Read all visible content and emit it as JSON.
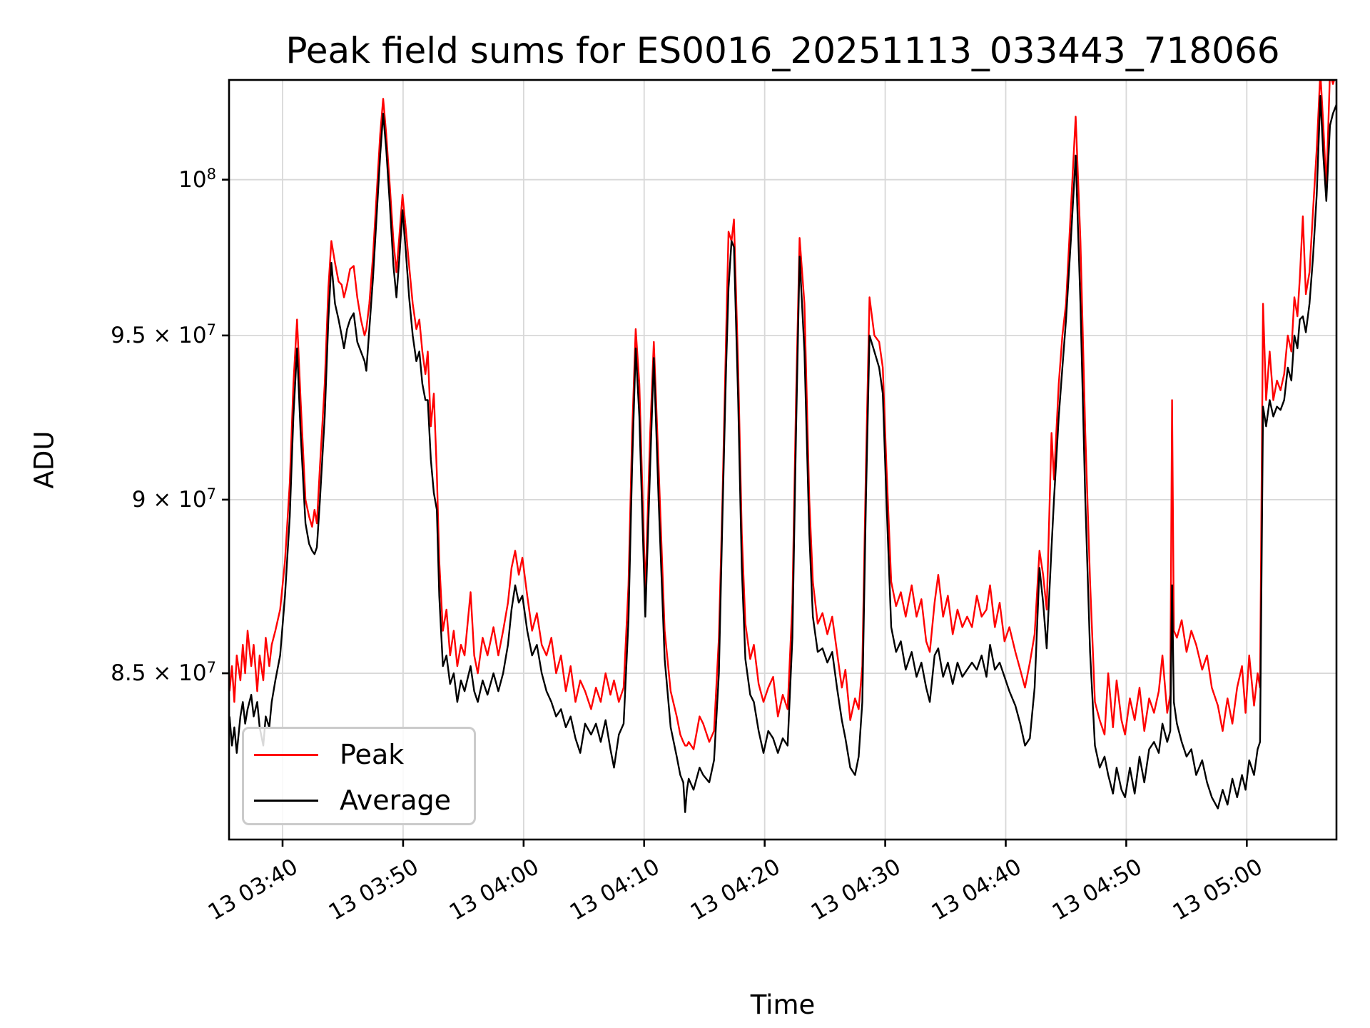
{
  "figure": {
    "title": "Peak field sums for ES0016_20251113_033443_718066"
  },
  "axes": {
    "xlabel": "Time",
    "ylabel": "ADU"
  },
  "legend": {
    "entries": [
      {
        "label": "Peak",
        "color": "#ff0000"
      },
      {
        "label": "Average",
        "color": "#000000"
      }
    ]
  },
  "chart_data": {
    "type": "line",
    "title": "Peak field sums for ES0016_20251113_033443_718066",
    "xlabel": "Time",
    "ylabel": "ADU",
    "yscale": "log",
    "grid": true,
    "legend_position": "lower left",
    "colors": {
      "peak": "#ff0000",
      "average": "#000000",
      "grid": "#d8d8d8",
      "spine": "#000000"
    },
    "x_unit": "minutes after 03:00 on day 13 (Nov 13)",
    "y_unit_multiplier": 10000000,
    "xlim_minutes": [
      35.56,
      127.44
    ],
    "ylim": [
      80470000,
      103340000
    ],
    "x_ticks": [
      {
        "t": 40,
        "label": "13 03:40"
      },
      {
        "t": 50,
        "label": "13 03:50"
      },
      {
        "t": 60,
        "label": "13 04:00"
      },
      {
        "t": 70,
        "label": "13 04:10"
      },
      {
        "t": 80,
        "label": "13 04:20"
      },
      {
        "t": 90,
        "label": "13 04:30"
      },
      {
        "t": 100,
        "label": "13 04:40"
      },
      {
        "t": 110,
        "label": "13 04:50"
      },
      {
        "t": 120,
        "label": "13 05:00"
      }
    ],
    "y_ticks": [
      {
        "v": 10.0,
        "base": "10",
        "exp": "8",
        "label": "10^8"
      },
      {
        "v": 9.5,
        "base": "9.5 × 10",
        "exp": "7",
        "label": "9.5 × 10^7"
      },
      {
        "v": 9.0,
        "base": "9 × 10",
        "exp": "7",
        "label": "9 × 10^7"
      },
      {
        "v": 8.5,
        "base": "8.5 × 10",
        "exp": "7",
        "label": "8.5 × 10^7"
      }
    ],
    "x": [
      35.6,
      35.8,
      36.0,
      36.2,
      36.5,
      36.7,
      36.9,
      37.1,
      37.4,
      37.6,
      37.9,
      38.1,
      38.4,
      38.6,
      38.9,
      39.1,
      39.4,
      39.8,
      40.2,
      40.6,
      40.9,
      41.2,
      41.5,
      41.9,
      42.2,
      42.45,
      42.65,
      42.85,
      43.1,
      43.5,
      43.8,
      44.05,
      44.35,
      44.65,
      44.9,
      45.1,
      45.35,
      45.6,
      45.9,
      46.2,
      46.5,
      46.8,
      46.95,
      47.2,
      47.5,
      47.8,
      48.1,
      48.35,
      48.6,
      48.9,
      49.2,
      49.45,
      49.7,
      49.95,
      50.2,
      50.5,
      50.8,
      51.1,
      51.35,
      51.6,
      51.85,
      52.05,
      52.3,
      52.55,
      52.8,
      53.0,
      53.3,
      53.6,
      53.9,
      54.2,
      54.5,
      54.8,
      55.1,
      55.6,
      55.9,
      56.2,
      56.6,
      57.0,
      57.5,
      57.9,
      58.3,
      58.7,
      59.0,
      59.3,
      59.6,
      59.9,
      60.3,
      60.7,
      61.1,
      61.5,
      61.9,
      62.3,
      62.7,
      63.1,
      63.5,
      63.9,
      64.3,
      64.7,
      65.1,
      65.6,
      66.0,
      66.4,
      66.8,
      67.2,
      67.5,
      67.9,
      68.3,
      68.7,
      69.0,
      69.3,
      69.6,
      70.1,
      70.5,
      70.8,
      71.2,
      71.7,
      72.2,
      72.7,
      73.0,
      73.25,
      73.4,
      73.55,
      73.7,
      74.1,
      74.6,
      74.9,
      75.4,
      75.8,
      76.2,
      76.5,
      76.8,
      77.0,
      77.25,
      77.45,
      77.8,
      78.1,
      78.4,
      78.8,
      79.1,
      79.5,
      79.9,
      80.3,
      80.7,
      81.1,
      81.5,
      81.9,
      82.3,
      82.6,
      82.9,
      83.3,
      83.7,
      84.0,
      84.4,
      84.8,
      85.2,
      85.6,
      86.0,
      86.4,
      86.7,
      87.1,
      87.5,
      87.8,
      88.1,
      88.4,
      88.7,
      89.1,
      89.5,
      89.8,
      90.1,
      90.5,
      90.9,
      91.3,
      91.7,
      92.2,
      92.6,
      93.0,
      93.4,
      93.7,
      94.1,
      94.4,
      94.8,
      95.2,
      95.6,
      96.0,
      96.4,
      96.8,
      97.2,
      97.6,
      98.0,
      98.4,
      98.7,
      99.1,
      99.5,
      99.9,
      100.3,
      100.8,
      101.2,
      101.6,
      102.0,
      102.4,
      102.8,
      103.1,
      103.4,
      103.8,
      104.0,
      104.4,
      104.7,
      105.0,
      105.4,
      105.8,
      106.2,
      106.6,
      107.0,
      107.4,
      107.8,
      108.2,
      108.5,
      108.9,
      109.2,
      109.6,
      109.9,
      110.3,
      110.7,
      111.1,
      111.5,
      111.9,
      112.3,
      112.7,
      113.0,
      113.4,
      113.65,
      113.8,
      113.95,
      114.2,
      114.6,
      115.0,
      115.4,
      115.8,
      116.3,
      116.7,
      117.1,
      117.6,
      118.0,
      118.4,
      118.8,
      119.2,
      119.6,
      119.9,
      120.2,
      120.6,
      120.9,
      121.1,
      121.35,
      121.6,
      121.9,
      122.2,
      122.5,
      122.8,
      123.1,
      123.4,
      123.7,
      123.95,
      124.2,
      124.4,
      124.65,
      124.9,
      125.2,
      125.5,
      125.8,
      126.1,
      126.35,
      126.6,
      126.9,
      127.15,
      127.44
    ],
    "series": [
      {
        "name": "Peak",
        "color": "#ff0000",
        "values": [
          8.45,
          8.52,
          8.42,
          8.55,
          8.48,
          8.58,
          8.5,
          8.62,
          8.52,
          8.58,
          8.45,
          8.55,
          8.48,
          8.6,
          8.52,
          8.58,
          8.62,
          8.68,
          8.82,
          9.05,
          9.35,
          9.55,
          9.3,
          9.0,
          8.95,
          8.92,
          8.97,
          8.93,
          9.1,
          9.35,
          9.65,
          9.8,
          9.73,
          9.67,
          9.66,
          9.62,
          9.66,
          9.71,
          9.72,
          9.62,
          9.55,
          9.5,
          9.52,
          9.6,
          9.75,
          9.95,
          10.15,
          10.27,
          10.15,
          9.98,
          9.8,
          9.7,
          9.82,
          9.95,
          9.85,
          9.72,
          9.6,
          9.52,
          9.55,
          9.45,
          9.38,
          9.45,
          9.22,
          9.32,
          9.08,
          8.82,
          8.62,
          8.68,
          8.55,
          8.62,
          8.52,
          8.58,
          8.55,
          8.73,
          8.55,
          8.5,
          8.6,
          8.55,
          8.63,
          8.55,
          8.62,
          8.7,
          8.8,
          8.85,
          8.78,
          8.83,
          8.72,
          8.62,
          8.67,
          8.58,
          8.55,
          8.6,
          8.5,
          8.55,
          8.45,
          8.52,
          8.42,
          8.48,
          8.45,
          8.4,
          8.46,
          8.42,
          8.5,
          8.44,
          8.48,
          8.42,
          8.46,
          8.75,
          9.2,
          9.52,
          9.35,
          8.73,
          9.2,
          9.48,
          9.1,
          8.62,
          8.45,
          8.38,
          8.33,
          8.31,
          8.3,
          8.3,
          8.31,
          8.29,
          8.38,
          8.36,
          8.31,
          8.34,
          8.6,
          9.0,
          9.5,
          9.83,
          9.8,
          9.87,
          9.4,
          8.9,
          8.64,
          8.54,
          8.58,
          8.47,
          8.42,
          8.46,
          8.49,
          8.38,
          8.44,
          8.4,
          8.7,
          9.3,
          9.81,
          9.6,
          9.0,
          8.76,
          8.64,
          8.67,
          8.61,
          8.66,
          8.56,
          8.46,
          8.51,
          8.37,
          8.43,
          8.4,
          8.52,
          9.1,
          9.62,
          9.5,
          9.48,
          9.4,
          9.1,
          8.76,
          8.69,
          8.73,
          8.66,
          8.75,
          8.66,
          8.71,
          8.59,
          8.56,
          8.7,
          8.78,
          8.66,
          8.72,
          8.61,
          8.68,
          8.63,
          8.66,
          8.63,
          8.72,
          8.66,
          8.68,
          8.75,
          8.63,
          8.7,
          8.59,
          8.63,
          8.56,
          8.51,
          8.46,
          8.53,
          8.61,
          8.85,
          8.78,
          8.68,
          9.2,
          9.06,
          9.35,
          9.5,
          9.6,
          9.9,
          10.21,
          9.8,
          9.2,
          8.76,
          8.42,
          8.37,
          8.33,
          8.5,
          8.35,
          8.48,
          8.37,
          8.33,
          8.43,
          8.37,
          8.46,
          8.34,
          8.43,
          8.39,
          8.45,
          8.55,
          8.39,
          8.44,
          9.3,
          8.62,
          8.6,
          8.65,
          8.56,
          8.62,
          8.58,
          8.51,
          8.55,
          8.46,
          8.41,
          8.34,
          8.43,
          8.36,
          8.46,
          8.52,
          8.39,
          8.55,
          8.41,
          8.5,
          8.46,
          9.6,
          9.3,
          9.45,
          9.3,
          9.36,
          9.33,
          9.38,
          9.5,
          9.45,
          9.62,
          9.56,
          9.68,
          9.88,
          9.63,
          9.7,
          9.9,
          10.1,
          10.36,
          10.18,
          9.97,
          10.36,
          10.32,
          10.36
        ]
      },
      {
        "name": "Average",
        "color": "#000000",
        "values": [
          8.38,
          8.3,
          8.35,
          8.28,
          8.38,
          8.42,
          8.36,
          8.4,
          8.44,
          8.38,
          8.42,
          8.35,
          8.3,
          8.38,
          8.35,
          8.42,
          8.48,
          8.55,
          8.72,
          8.95,
          9.25,
          9.46,
          9.2,
          8.93,
          8.87,
          8.85,
          8.84,
          8.86,
          9.0,
          9.25,
          9.55,
          9.73,
          9.6,
          9.55,
          9.5,
          9.46,
          9.52,
          9.55,
          9.57,
          9.48,
          9.45,
          9.42,
          9.39,
          9.52,
          9.68,
          9.88,
          10.08,
          10.22,
          10.1,
          9.92,
          9.72,
          9.62,
          9.75,
          9.9,
          9.78,
          9.62,
          9.5,
          9.42,
          9.45,
          9.35,
          9.3,
          9.3,
          9.12,
          9.02,
          8.97,
          8.72,
          8.52,
          8.55,
          8.47,
          8.5,
          8.42,
          8.48,
          8.45,
          8.52,
          8.45,
          8.42,
          8.48,
          8.44,
          8.5,
          8.45,
          8.5,
          8.58,
          8.68,
          8.75,
          8.7,
          8.72,
          8.62,
          8.55,
          8.58,
          8.5,
          8.45,
          8.42,
          8.38,
          8.4,
          8.35,
          8.38,
          8.32,
          8.28,
          8.36,
          8.33,
          8.36,
          8.31,
          8.37,
          8.29,
          8.24,
          8.33,
          8.36,
          8.65,
          9.1,
          9.46,
          9.25,
          8.66,
          9.1,
          9.43,
          9.0,
          8.54,
          8.35,
          8.27,
          8.22,
          8.2,
          8.12,
          8.18,
          8.21,
          8.18,
          8.24,
          8.22,
          8.2,
          8.26,
          8.5,
          8.95,
          9.4,
          9.65,
          9.8,
          9.78,
          9.3,
          8.8,
          8.54,
          8.44,
          8.42,
          8.34,
          8.28,
          8.34,
          8.32,
          8.28,
          8.32,
          8.3,
          8.6,
          9.2,
          9.75,
          9.45,
          8.9,
          8.66,
          8.56,
          8.57,
          8.53,
          8.56,
          8.46,
          8.37,
          8.32,
          8.24,
          8.22,
          8.27,
          8.42,
          9.0,
          9.5,
          9.45,
          9.4,
          9.32,
          9.0,
          8.63,
          8.56,
          8.59,
          8.51,
          8.56,
          8.49,
          8.53,
          8.46,
          8.42,
          8.55,
          8.57,
          8.49,
          8.53,
          8.47,
          8.53,
          8.49,
          8.51,
          8.53,
          8.51,
          8.55,
          8.49,
          8.58,
          8.51,
          8.53,
          8.49,
          8.45,
          8.41,
          8.36,
          8.3,
          8.32,
          8.46,
          8.8,
          8.7,
          8.57,
          8.86,
          9.0,
          9.25,
          9.4,
          9.55,
          9.8,
          10.08,
          9.6,
          9.0,
          8.56,
          8.3,
          8.24,
          8.27,
          8.22,
          8.17,
          8.24,
          8.18,
          8.16,
          8.24,
          8.17,
          8.27,
          8.2,
          8.29,
          8.31,
          8.28,
          8.36,
          8.31,
          8.34,
          8.75,
          8.42,
          8.36,
          8.31,
          8.27,
          8.29,
          8.22,
          8.26,
          8.2,
          8.16,
          8.13,
          8.18,
          8.14,
          8.21,
          8.16,
          8.22,
          8.18,
          8.26,
          8.22,
          8.29,
          8.31,
          9.28,
          9.22,
          9.3,
          9.25,
          9.28,
          9.27,
          9.3,
          9.4,
          9.36,
          9.5,
          9.46,
          9.55,
          9.56,
          9.51,
          9.6,
          9.75,
          9.95,
          10.28,
          10.08,
          9.93,
          10.18,
          10.22,
          10.25
        ]
      }
    ]
  }
}
